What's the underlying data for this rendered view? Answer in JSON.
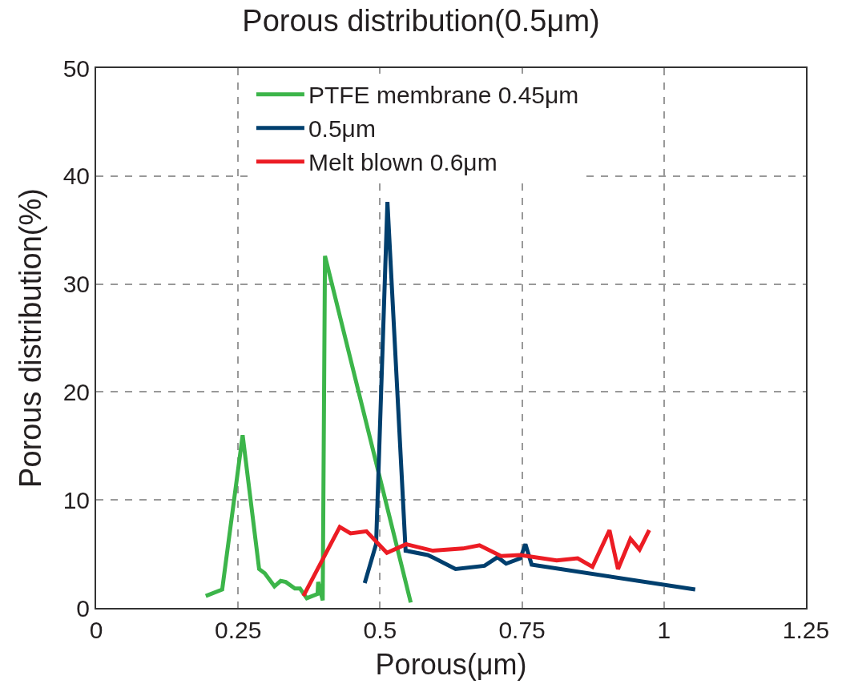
{
  "chart_data": {
    "type": "line",
    "title": "Porous distribution(0.5μm)",
    "xlabel": "Porous(μm)",
    "ylabel": "Porous distribution(%)",
    "xlim": [
      0,
      1.25
    ],
    "xticks": [
      0,
      0.25,
      0.5,
      0.75,
      1,
      1.25
    ],
    "ylim": [
      0,
      50
    ],
    "yticks": [
      0,
      10,
      20,
      30,
      40,
      50
    ],
    "grid": true,
    "legend": "top",
    "line_style": "solid",
    "series": [
      {
        "name": "PTFE membrane 0.45μm",
        "color": "#3cb54a",
        "x": [
          0.193,
          0.222,
          0.258,
          0.287,
          0.297,
          0.314,
          0.325,
          0.334,
          0.35,
          0.359,
          0.371,
          0.39,
          0.391,
          0.399,
          0.403,
          0.554
        ],
        "values": [
          1.1,
          1.7,
          16.0,
          3.6,
          3.2,
          2.0,
          2.5,
          2.4,
          1.8,
          1.8,
          0.9,
          1.3,
          2.4,
          0.7,
          32.6,
          0.5
        ]
      },
      {
        "name": "0.5μm",
        "color": "#003f6e",
        "x": [
          0.473,
          0.493,
          0.513,
          0.545,
          0.584,
          0.596,
          0.633,
          0.684,
          0.707,
          0.722,
          0.747,
          0.756,
          0.767,
          1.055
        ],
        "values": [
          2.3,
          5.9,
          37.6,
          5.3,
          4.9,
          4.6,
          3.6,
          3.9,
          4.7,
          4.1,
          4.6,
          5.9,
          4.0,
          1.7
        ]
      },
      {
        "name": "Melt blown 0.6μm",
        "color": "#ec1c24",
        "x": [
          0.365,
          0.429,
          0.448,
          0.476,
          0.512,
          0.546,
          0.593,
          0.646,
          0.675,
          0.713,
          0.747,
          0.811,
          0.848,
          0.874,
          0.904,
          0.919,
          0.941,
          0.957,
          0.974
        ],
        "values": [
          1.1,
          7.5,
          6.9,
          7.1,
          5.1,
          5.9,
          5.3,
          5.5,
          5.8,
          4.8,
          4.9,
          4.4,
          4.6,
          3.8,
          7.2,
          3.6,
          6.4,
          5.4,
          7.2
        ]
      }
    ]
  }
}
